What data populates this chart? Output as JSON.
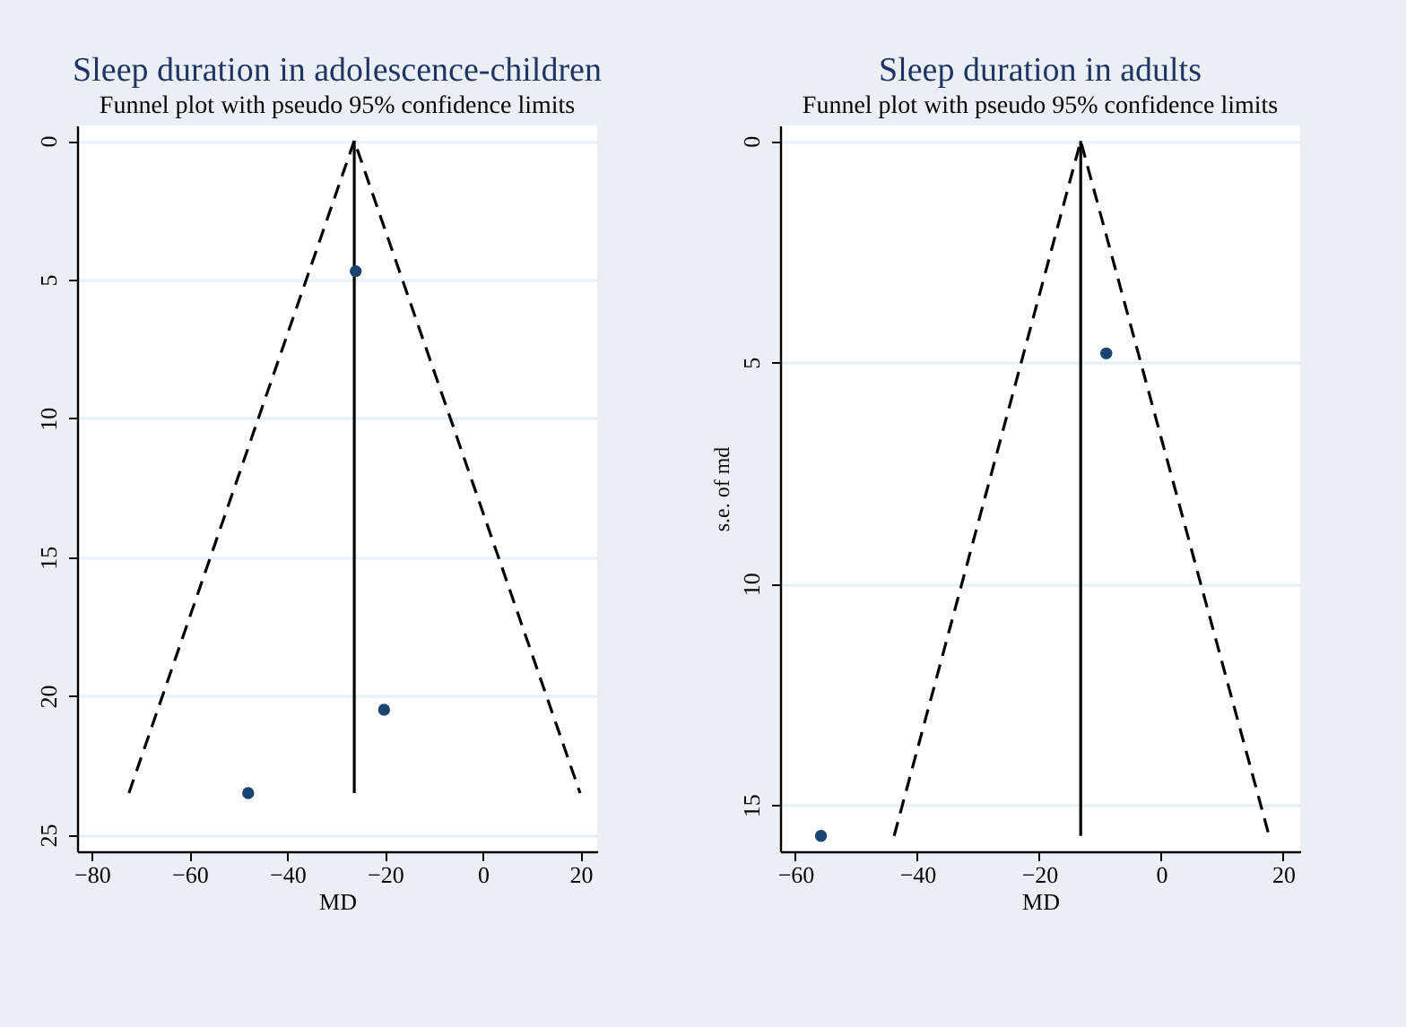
{
  "chart_data": [
    {
      "type": "scatter",
      "title": "Sleep duration in adolescence-children",
      "subtitle": "Funnel plot with pseudo 95% confidence limits",
      "xlabel": "MD",
      "xlim": [
        -83,
        23.4
      ],
      "xticks": [
        -80,
        -60,
        -40,
        -20,
        0,
        20
      ],
      "ylim": [
        25.6,
        -0.55
      ],
      "yticks": [
        0,
        5,
        10,
        15,
        20,
        25
      ],
      "grid": "y",
      "series": [
        {
          "type": "line",
          "color": "#000000",
          "line_style": "dashed",
          "marker": "none",
          "x": [
            -72.4,
            -26.3,
            19.9
          ],
          "values": [
            23.5,
            0,
            23.5
          ]
        },
        {
          "type": "line",
          "color": "#000000",
          "line_style": "solid",
          "marker": "none",
          "x": [
            -26.3,
            -26.3
          ],
          "values": [
            23.5,
            0
          ]
        },
        {
          "color": "#1b4470",
          "marker": "circle",
          "x": [
            -26.0,
            -20.2,
            -48.0
          ],
          "values": [
            4.7,
            20.5,
            23.5
          ]
        }
      ]
    },
    {
      "type": "scatter",
      "title": "Sleep duration in adults",
      "subtitle": "Funnel plot with pseudo 95% confidence limits",
      "xlabel": "MD",
      "ylabel": "s.e. of md",
      "xlim": [
        -62.5,
        22.8
      ],
      "xticks": [
        -60,
        -40,
        -20,
        0,
        20
      ],
      "ylim": [
        16.05,
        -0.35
      ],
      "yticks": [
        0,
        5,
        10,
        15
      ],
      "grid": "y",
      "series": [
        {
          "type": "line",
          "color": "#000000",
          "line_style": "dashed",
          "marker": "none",
          "x": [
            -43.8,
            -13.2,
            17.7
          ],
          "values": [
            15.7,
            0,
            15.7
          ]
        },
        {
          "type": "line",
          "color": "#000000",
          "line_style": "solid",
          "marker": "none",
          "x": [
            -13.2,
            -13.2
          ],
          "values": [
            15.7,
            0
          ]
        },
        {
          "color": "#1b4470",
          "marker": "circle",
          "x": [
            -9.0,
            -55.8
          ],
          "values": [
            4.8,
            15.7
          ]
        }
      ]
    }
  ]
}
